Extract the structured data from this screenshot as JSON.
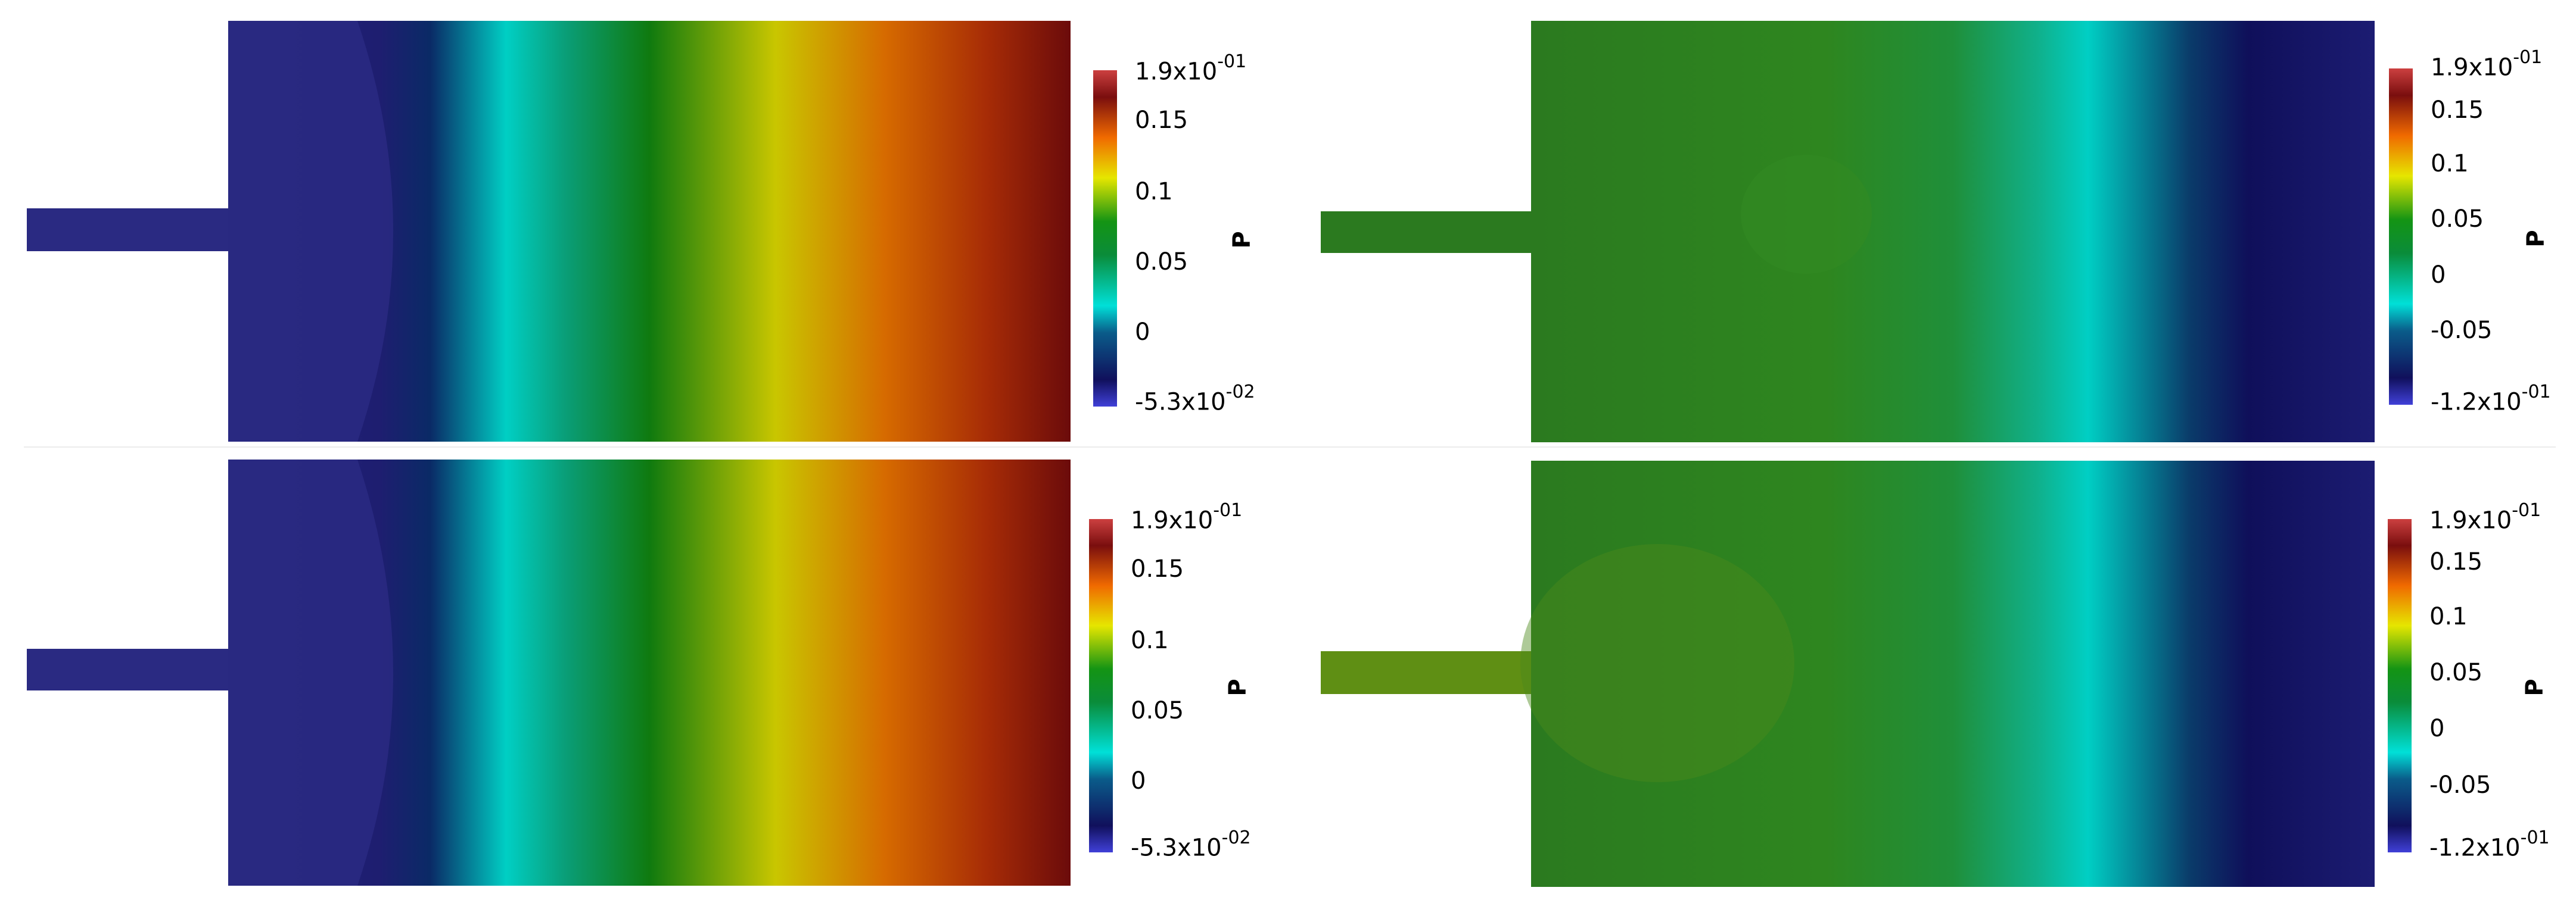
{
  "colorbar_title": "P",
  "colors": {
    "scale": [
      "#3f3fd8",
      "#0e0e5e",
      "#00d2c8",
      "#0f7d0f",
      "#d0d000",
      "#f07000",
      "#7a1010",
      "#c83c3c"
    ],
    "domain_blue": "#2a2a82",
    "domain_green": "#2a7a1e"
  },
  "panels": [
    {
      "id": "top-left",
      "field": "pressure-gradient",
      "ticks": [
        "0.15",
        "0.1",
        "0.05",
        "0"
      ],
      "max": {
        "base": "1.9x10",
        "exp": "-01"
      },
      "min": {
        "base": "-5.3x10",
        "exp": "-02"
      }
    },
    {
      "id": "top-right",
      "field": "pressure-reversed",
      "ticks": [
        "0.15",
        "0.1",
        "0.05",
        "0",
        "-0.05"
      ],
      "max": {
        "base": "1.9x10",
        "exp": "-01"
      },
      "min": {
        "base": "-1.2x10",
        "exp": "-01"
      }
    },
    {
      "id": "bottom-left",
      "field": "pressure-gradient-noisy",
      "ticks": [
        "0.15",
        "0.1",
        "0.05",
        "0"
      ],
      "max": {
        "base": "1.9x10",
        "exp": "-01"
      },
      "min": {
        "base": "-5.3x10",
        "exp": "-02"
      }
    },
    {
      "id": "bottom-right",
      "field": "pressure-reversed-noisy",
      "ticks": [
        "0.15",
        "0.1",
        "0.05",
        "0",
        "-0.05"
      ],
      "max": {
        "base": "1.9x10",
        "exp": "-01"
      },
      "min": {
        "base": "-1.2x10",
        "exp": "-01"
      }
    }
  ]
}
